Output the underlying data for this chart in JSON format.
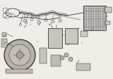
{
  "bg_color": "#f0ede8",
  "line_color": "#1a1a1a",
  "figsize": [
    1.6,
    1.12
  ],
  "dpi": 100,
  "white_bg": "#f5f2ed",
  "gray_part": "#c0b8b0",
  "dark_part": "#6a6560",
  "grid_color": "#888080"
}
